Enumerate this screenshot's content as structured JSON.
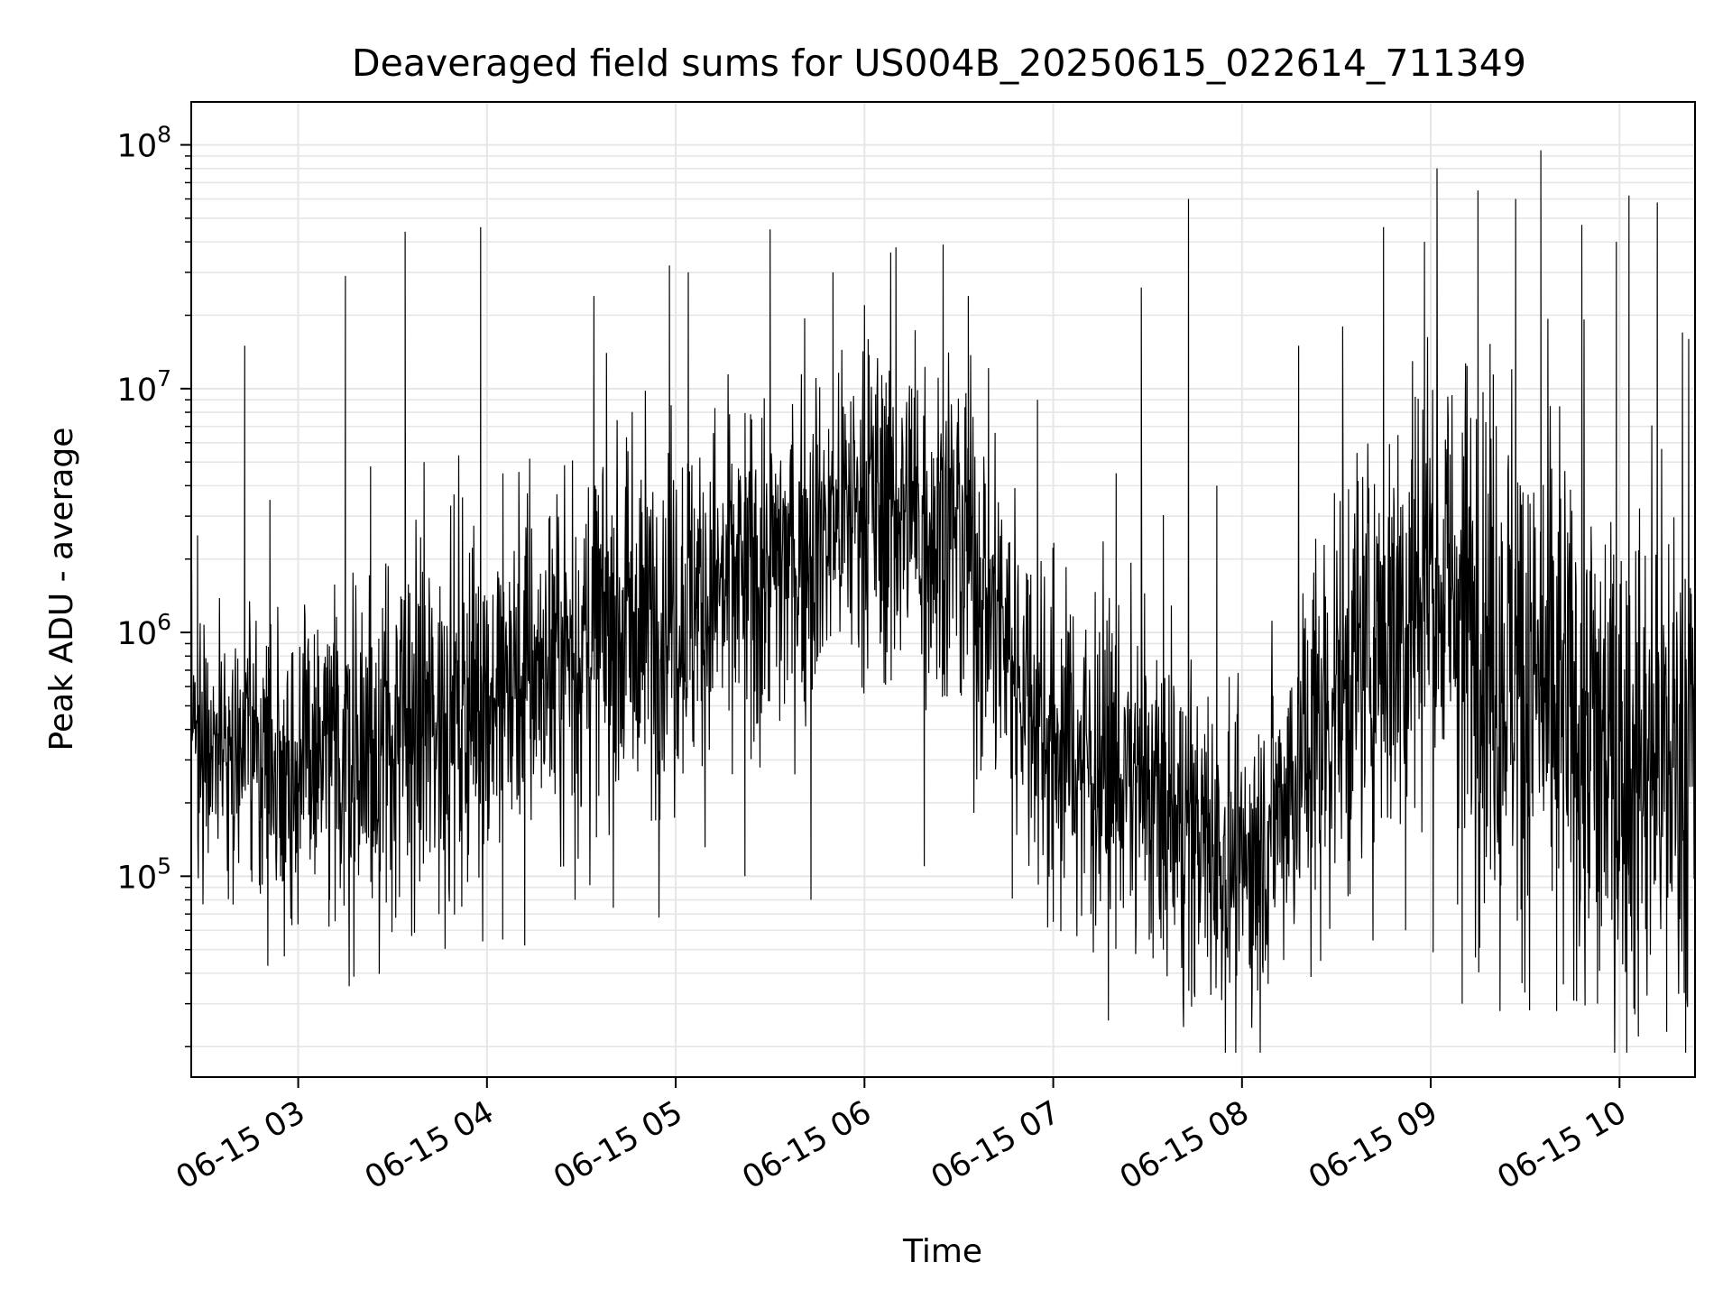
{
  "chart_data": {
    "type": "line",
    "title": "Deaveraged field sums for US004B_20250615_022614_711349",
    "xlabel": "Time",
    "ylabel": "Peak ADU - average",
    "yscale": "log",
    "ylim": [
      15000,
      150000000
    ],
    "xlim": [
      "2025-06-15 02:26",
      "2025-06-15 10:24"
    ],
    "grid": true,
    "line_color": "#000000",
    "grid_color": "#e6e6e6",
    "x_ticks": [
      {
        "value": "2025-06-15 03:00",
        "label": "06-15 03"
      },
      {
        "value": "2025-06-15 04:00",
        "label": "06-15 04"
      },
      {
        "value": "2025-06-15 05:00",
        "label": "06-15 05"
      },
      {
        "value": "2025-06-15 06:00",
        "label": "06-15 06"
      },
      {
        "value": "2025-06-15 07:00",
        "label": "06-15 07"
      },
      {
        "value": "2025-06-15 08:00",
        "label": "06-15 08"
      },
      {
        "value": "2025-06-15 09:00",
        "label": "06-15 09"
      },
      {
        "value": "2025-06-15 10:00",
        "label": "06-15 10"
      }
    ],
    "y_ticks": [
      {
        "value": 100000,
        "base": "10",
        "exp": "5"
      },
      {
        "value": 1000000,
        "base": "10",
        "exp": "6"
      },
      {
        "value": 10000000,
        "base": "10",
        "exp": "7"
      },
      {
        "value": 100000000,
        "base": "10",
        "exp": "8"
      }
    ],
    "series": [
      {
        "name": "",
        "points": [
          [
            "2025-06-15 02:26",
            150000
          ],
          [
            "2025-06-15 02:28",
            2500000
          ],
          [
            "2025-06-15 02:30",
            400000
          ],
          [
            "2025-06-15 02:36",
            300000
          ],
          [
            "2025-06-15 02:43",
            15000000
          ],
          [
            "2025-06-15 02:48",
            200000
          ],
          [
            "2025-06-15 02:51",
            3500000
          ],
          [
            "2025-06-15 02:58",
            63000
          ],
          [
            "2025-06-15 03:10",
            80000
          ],
          [
            "2025-06-15 03:15",
            29000000
          ],
          [
            "2025-06-15 03:23",
            4800000
          ],
          [
            "2025-06-15 03:28",
            78000
          ],
          [
            "2025-06-15 03:34",
            44000000
          ],
          [
            "2025-06-15 03:40",
            5000000
          ],
          [
            "2025-06-15 03:45",
            400000
          ],
          [
            "2025-06-15 03:52",
            75000
          ],
          [
            "2025-06-15 03:58",
            46000000
          ],
          [
            "2025-06-15 04:05",
            55000
          ],
          [
            "2025-06-15 04:12",
            52000
          ],
          [
            "2025-06-15 04:20",
            3000000
          ],
          [
            "2025-06-15 04:28",
            80000
          ],
          [
            "2025-06-15 04:34",
            24000000
          ],
          [
            "2025-06-15 04:38",
            14000000
          ],
          [
            "2025-06-15 04:48",
            700000
          ],
          [
            "2025-06-15 04:58",
            32000000
          ],
          [
            "2025-06-15 05:04",
            30000000
          ],
          [
            "2025-06-15 05:10",
            600000
          ],
          [
            "2025-06-15 05:22",
            100000
          ],
          [
            "2025-06-15 05:30",
            45000000
          ],
          [
            "2025-06-15 05:35",
            2000000
          ],
          [
            "2025-06-15 05:43",
            80000
          ],
          [
            "2025-06-15 05:50",
            30000000
          ],
          [
            "2025-06-15 05:55",
            3000000
          ],
          [
            "2025-06-15 06:00",
            22000000
          ],
          [
            "2025-06-15 06:05",
            900000
          ],
          [
            "2025-06-15 06:10",
            38000000
          ],
          [
            "2025-06-15 06:15",
            10000000
          ],
          [
            "2025-06-15 06:19",
            110000
          ],
          [
            "2025-06-15 06:25",
            39000000
          ],
          [
            "2025-06-15 06:33",
            24000000
          ],
          [
            "2025-06-15 06:40",
            2000000
          ],
          [
            "2025-06-15 06:47",
            81000
          ],
          [
            "2025-06-15 06:55",
            9000000
          ],
          [
            "2025-06-15 07:00",
            65000
          ],
          [
            "2025-06-15 07:05",
            1000000
          ],
          [
            "2025-06-15 07:12",
            70000
          ],
          [
            "2025-06-15 07:20",
            4500000
          ],
          [
            "2025-06-15 07:28",
            26000000
          ],
          [
            "2025-06-15 07:35",
            50000
          ],
          [
            "2025-06-15 07:43",
            60000000
          ],
          [
            "2025-06-15 07:45",
            32000
          ],
          [
            "2025-06-15 07:52",
            4000000
          ],
          [
            "2025-06-15 07:58",
            40000
          ],
          [
            "2025-06-15 08:05",
            34000
          ],
          [
            "2025-06-15 08:12",
            400000
          ],
          [
            "2025-06-15 08:18",
            15000000
          ],
          [
            "2025-06-15 08:25",
            45000
          ],
          [
            "2025-06-15 08:32",
            18000000
          ],
          [
            "2025-06-15 08:38",
            150000
          ],
          [
            "2025-06-15 08:45",
            46000000
          ],
          [
            "2025-06-15 08:48",
            800000
          ],
          [
            "2025-06-15 08:52",
            60000
          ],
          [
            "2025-06-15 08:58",
            40000000
          ],
          [
            "2025-06-15 09:02",
            80000000
          ],
          [
            "2025-06-15 09:10",
            30000
          ],
          [
            "2025-06-15 09:15",
            65000000
          ],
          [
            "2025-06-15 09:22",
            28000
          ],
          [
            "2025-06-15 09:27",
            60000000
          ],
          [
            "2025-06-15 09:35",
            95000000
          ],
          [
            "2025-06-15 09:40",
            28000
          ],
          [
            "2025-06-15 09:48",
            47000000
          ],
          [
            "2025-06-15 09:53",
            30000
          ],
          [
            "2025-06-15 09:59",
            40000000
          ],
          [
            "2025-06-15 10:03",
            62000000
          ],
          [
            "2025-06-15 10:06",
            22000
          ],
          [
            "2025-06-15 10:12",
            58000000
          ],
          [
            "2025-06-15 10:15",
            23000
          ],
          [
            "2025-06-15 10:20",
            17000000
          ],
          [
            "2025-06-15 10:22",
            16000000
          ],
          [
            "2025-06-15 10:24",
            67000
          ]
        ]
      }
    ]
  }
}
